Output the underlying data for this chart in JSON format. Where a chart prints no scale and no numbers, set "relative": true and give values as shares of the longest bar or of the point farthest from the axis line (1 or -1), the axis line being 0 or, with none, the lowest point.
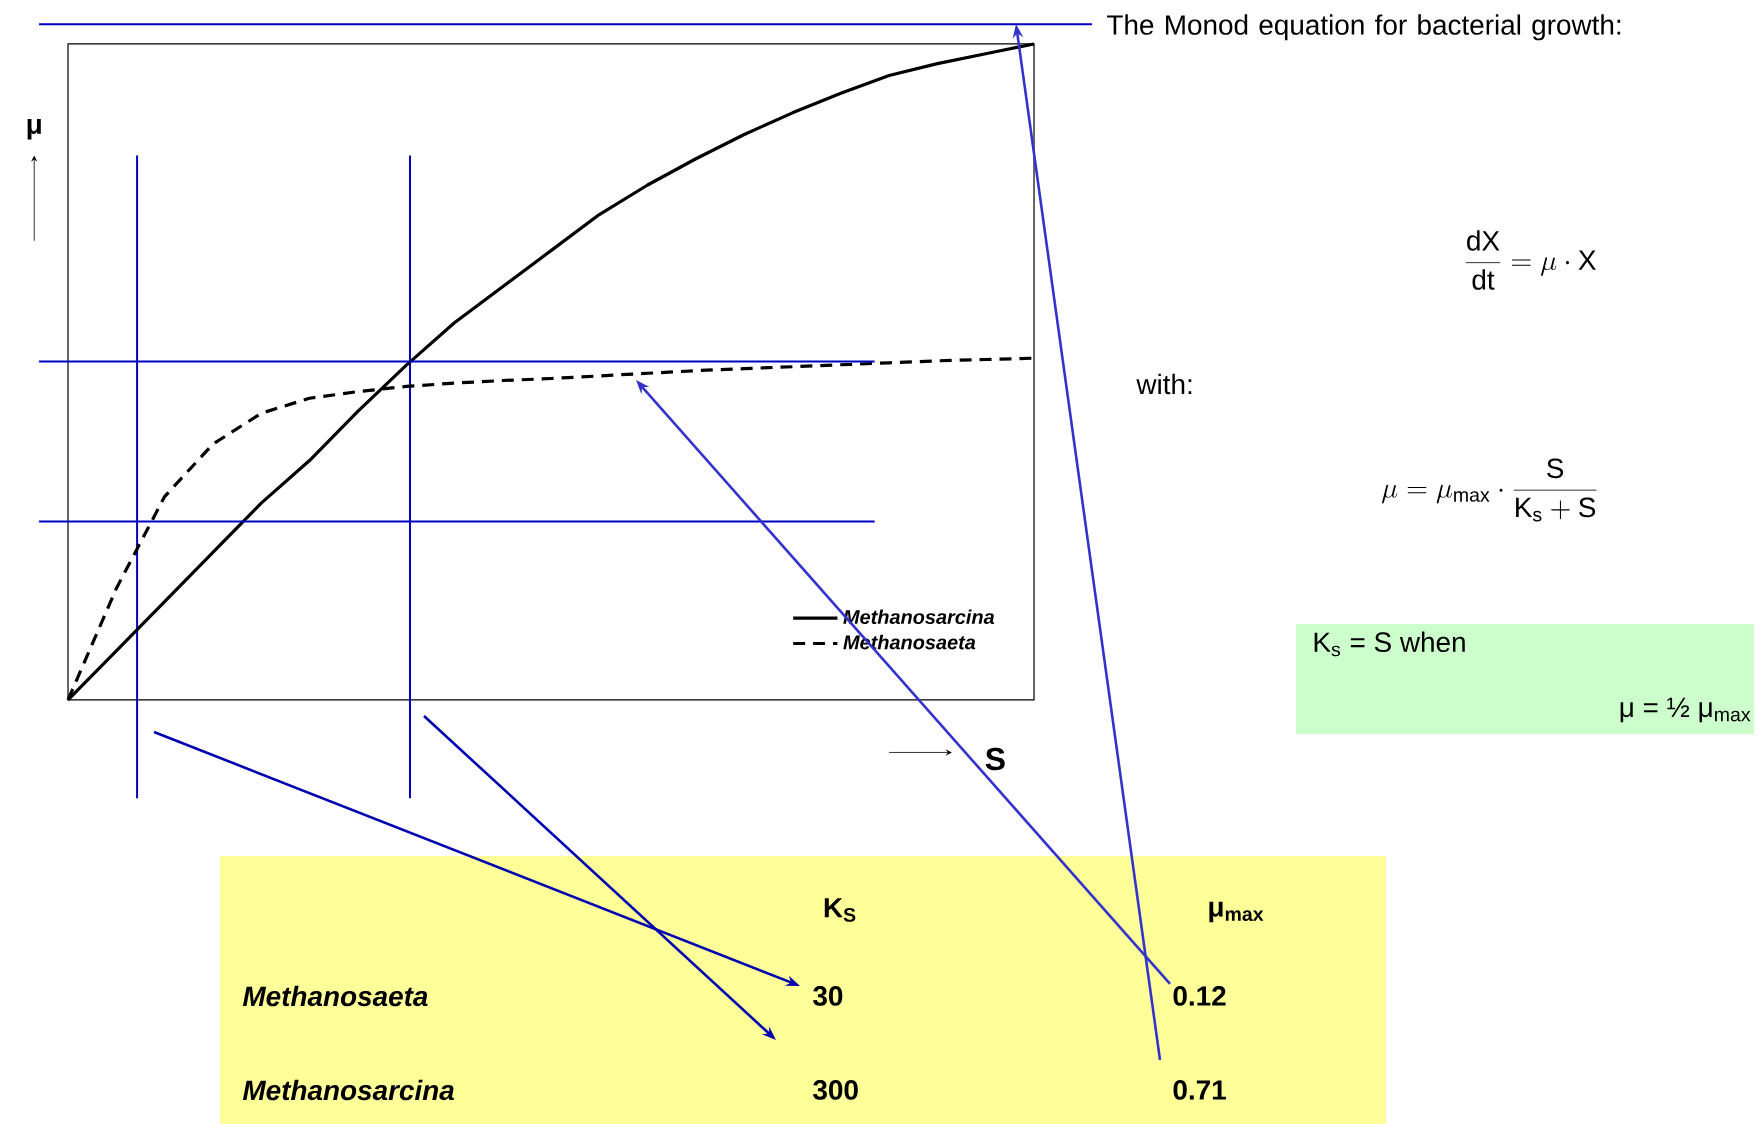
{
  "chart_data": {
    "type": "line",
    "relative": true,
    "xlabel": "S",
    "ylabel": "μ",
    "categories": [
      null,
      null,
      null,
      null,
      null,
      null,
      null,
      null,
      null,
      null,
      null,
      null,
      null,
      null,
      null,
      null,
      null,
      null,
      null,
      null,
      null
    ],
    "series": [
      {
        "name": "Methanosarcina",
        "color": "#000000",
        "line_style": "solid",
        "values": [
          0,
          0.075,
          0.15,
          0.225,
          0.3,
          0.365,
          0.44,
          0.51,
          0.575,
          0.63,
          0.685,
          0.74,
          0.785,
          0.825,
          0.862,
          0.895,
          0.925,
          0.952,
          0.97,
          0.985,
          1.0
        ]
      },
      {
        "name": "Methanosaeta",
        "color": "#000000",
        "line_style": "dashed",
        "values": [
          0,
          0.17,
          0.31,
          0.39,
          0.437,
          0.46,
          0.47,
          0.478,
          0.483,
          0.487,
          0.49,
          0.494,
          0.498,
          0.502,
          0.505,
          0.508,
          0.511,
          0.514,
          0.517,
          0.519,
          0.521
        ]
      }
    ],
    "legend": "bottom right",
    "ref_lines": [
      {
        "axis": "y",
        "value": 0.516,
        "color": "#0000c0"
      },
      {
        "axis": "y",
        "value": 0.272,
        "color": "#0000c0"
      },
      {
        "axis": "y",
        "value": 1.03,
        "color": "#0000c0"
      }
    ],
    "annotations": [
      "The Monod equation for bacterial growth:",
      "\\frac{\\mathrm{dX}}{\\mathrm{dt}} = \\mu \\cdot \\mathrm{X}",
      "with:",
      "\\mu = \\mu_{\\mathrm{max}} \\cdot \\frac{\\mathrm{S}}{\\mathrm{K_s} + \\mathrm{S}}",
      "K$_{s}$ = S  when",
      "μ = ½ μ$_{max}$",
      "K$_{S}$",
      "μ$_{max}$",
      "Methanosaeta",
      "30",
      "0.12",
      "Methanosarcina",
      "300",
      "0.71"
    ]
  }
}
